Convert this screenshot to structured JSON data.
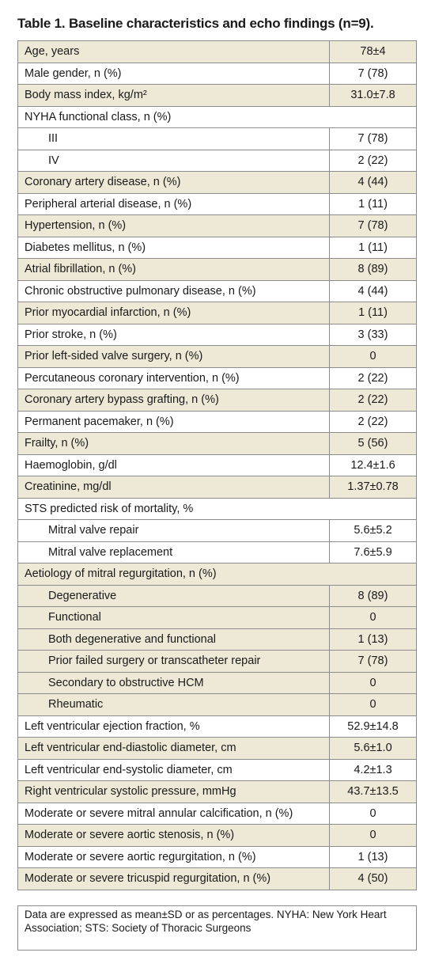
{
  "title": "Table 1. Baseline characteristics and echo findings (n=9).",
  "rows": [
    {
      "label": "Age, years",
      "value": "78±4",
      "indent": false,
      "shade": true
    },
    {
      "label": "Male gender, n (%)",
      "value": "7 (78)",
      "indent": false,
      "shade": false
    },
    {
      "label": "Body mass index, kg/m²",
      "value": "31.0±7.8",
      "indent": false,
      "shade": true
    },
    {
      "label": "NYHA functional class, n (%)",
      "value": null,
      "indent": false,
      "shade": false
    },
    {
      "label": "III",
      "value": "7 (78)",
      "indent": true,
      "shade": false
    },
    {
      "label": "IV",
      "value": "2 (22)",
      "indent": true,
      "shade": false
    },
    {
      "label": "Coronary artery disease, n (%)",
      "value": "4 (44)",
      "indent": false,
      "shade": true
    },
    {
      "label": "Peripheral arterial disease, n (%)",
      "value": "1 (11)",
      "indent": false,
      "shade": false
    },
    {
      "label": "Hypertension, n (%)",
      "value": "7 (78)",
      "indent": false,
      "shade": true
    },
    {
      "label": "Diabetes mellitus, n (%)",
      "value": "1 (11)",
      "indent": false,
      "shade": false
    },
    {
      "label": "Atrial fibrillation, n (%)",
      "value": "8 (89)",
      "indent": false,
      "shade": true
    },
    {
      "label": "Chronic obstructive pulmonary disease, n (%)",
      "value": "4 (44)",
      "indent": false,
      "shade": false
    },
    {
      "label": "Prior myocardial infarction, n (%)",
      "value": "1 (11)",
      "indent": false,
      "shade": true
    },
    {
      "label": "Prior stroke, n (%)",
      "value": "3 (33)",
      "indent": false,
      "shade": false
    },
    {
      "label": "Prior left-sided valve surgery, n (%)",
      "value": "0",
      "indent": false,
      "shade": true
    },
    {
      "label": "Percutaneous coronary intervention, n (%)",
      "value": "2 (22)",
      "indent": false,
      "shade": false
    },
    {
      "label": "Coronary artery bypass grafting, n (%)",
      "value": "2 (22)",
      "indent": false,
      "shade": true
    },
    {
      "label": "Permanent pacemaker, n (%)",
      "value": "2 (22)",
      "indent": false,
      "shade": false
    },
    {
      "label": "Frailty, n (%)",
      "value": "5 (56)",
      "indent": false,
      "shade": true
    },
    {
      "label": "Haemoglobin, g/dl",
      "value": "12.4±1.6",
      "indent": false,
      "shade": false
    },
    {
      "label": "Creatinine, mg/dl",
      "value": "1.37±0.78",
      "indent": false,
      "shade": true
    },
    {
      "label": "STS predicted risk of mortality, %",
      "value": null,
      "indent": false,
      "shade": false
    },
    {
      "label": "Mitral valve repair",
      "value": "5.6±5.2",
      "indent": true,
      "shade": false
    },
    {
      "label": "Mitral valve replacement",
      "value": "7.6±5.9",
      "indent": true,
      "shade": false
    },
    {
      "label": "Aetiology of mitral regurgitation, n (%)",
      "value": null,
      "indent": false,
      "shade": true
    },
    {
      "label": "Degenerative",
      "value": "8 (89)",
      "indent": true,
      "shade": true
    },
    {
      "label": "Functional",
      "value": "0",
      "indent": true,
      "shade": true
    },
    {
      "label": "Both degenerative and functional",
      "value": "1 (13)",
      "indent": true,
      "shade": true
    },
    {
      "label": "Prior failed surgery or transcatheter repair",
      "value": "7 (78)",
      "indent": true,
      "shade": true
    },
    {
      "label": "Secondary to obstructive HCM",
      "value": "0",
      "indent": true,
      "shade": true
    },
    {
      "label": "Rheumatic",
      "value": "0",
      "indent": true,
      "shade": true
    },
    {
      "label": "Left ventricular ejection fraction, %",
      "value": "52.9±14.8",
      "indent": false,
      "shade": false
    },
    {
      "label": "Left ventricular end-diastolic diameter, cm",
      "value": "5.6±1.0",
      "indent": false,
      "shade": true
    },
    {
      "label": "Left ventricular end-systolic diameter, cm",
      "value": "4.2±1.3",
      "indent": false,
      "shade": false
    },
    {
      "label": "Right ventricular systolic pressure, mmHg",
      "value": "43.7±13.5",
      "indent": false,
      "shade": true
    },
    {
      "label": "Moderate or severe mitral annular calcification, n (%)",
      "value": "0",
      "indent": false,
      "shade": false
    },
    {
      "label": "Moderate or severe aortic stenosis, n (%)",
      "value": "0",
      "indent": false,
      "shade": true
    },
    {
      "label": "Moderate or severe aortic regurgitation, n (%)",
      "value": "1 (13)",
      "indent": false,
      "shade": false
    },
    {
      "label": "Moderate or severe tricuspid regurgitation, n (%)",
      "value": "4 (50)",
      "indent": false,
      "shade": true
    }
  ],
  "footnote": "Data are expressed as mean±SD or as percentages. NYHA: New York Heart Association; STS: Society of Thoracic Surgeons",
  "colors": {
    "shade": "#ede9d6",
    "border": "#8c8c8c"
  }
}
